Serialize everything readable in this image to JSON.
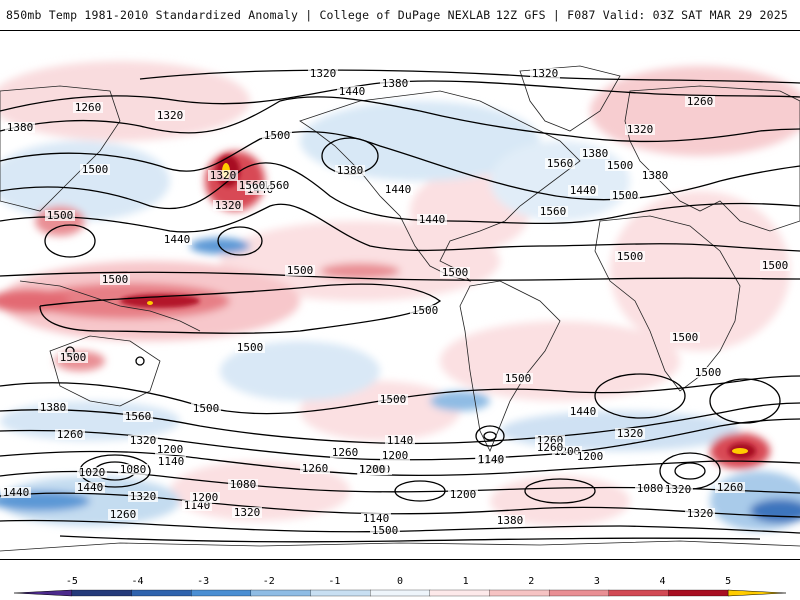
{
  "header": {
    "title": "850mb Temp 1981-2010 Standardized Anomaly | College of DuPage NEXLAB",
    "run_info": "12Z GFS | F087 Valid: 03Z SAT MAR 29 2025"
  },
  "map": {
    "contour_labels": [
      {
        "text": "1320"
      },
      {
        "text": "1320"
      },
      {
        "text": "1380"
      },
      {
        "text": "1440"
      },
      {
        "text": "1260"
      },
      {
        "text": "1380"
      },
      {
        "text": "1320"
      },
      {
        "text": "1500"
      },
      {
        "text": "1500"
      },
      {
        "text": "1320"
      },
      {
        "text": "1380"
      },
      {
        "text": "1560"
      },
      {
        "text": "1440"
      },
      {
        "text": "1500"
      },
      {
        "text": "1440"
      },
      {
        "text": "1380"
      },
      {
        "text": "1440"
      },
      {
        "text": "1560"
      },
      {
        "text": "1320"
      },
      {
        "text": "1320"
      },
      {
        "text": "1380"
      },
      {
        "text": "1500"
      },
      {
        "text": "1440"
      },
      {
        "text": "1260"
      },
      {
        "text": "1440"
      },
      {
        "text": "1560"
      },
      {
        "text": "1500"
      },
      {
        "text": "1560"
      },
      {
        "text": "1500"
      },
      {
        "text": "1500"
      },
      {
        "text": "1500"
      },
      {
        "text": "1500"
      },
      {
        "text": "1500"
      },
      {
        "text": "1500"
      },
      {
        "text": "1500"
      },
      {
        "text": "1500"
      },
      {
        "text": "1500"
      },
      {
        "text": "1500"
      },
      {
        "text": "1500"
      },
      {
        "text": "1500"
      },
      {
        "text": "1380"
      },
      {
        "text": "1560"
      },
      {
        "text": "1500"
      },
      {
        "text": "1440"
      },
      {
        "text": "1260"
      },
      {
        "text": "1320"
      },
      {
        "text": "1200"
      },
      {
        "text": "1140"
      },
      {
        "text": "1080"
      },
      {
        "text": "1020"
      },
      {
        "text": "1080"
      },
      {
        "text": "1140"
      },
      {
        "text": "1320"
      },
      {
        "text": "1200"
      },
      {
        "text": "1260"
      },
      {
        "text": "1260"
      },
      {
        "text": "1140"
      },
      {
        "text": "1200"
      },
      {
        "text": "1140"
      },
      {
        "text": "1140"
      },
      {
        "text": "1200"
      },
      {
        "text": "1260"
      },
      {
        "text": "1380"
      },
      {
        "text": "1200"
      },
      {
        "text": "1260"
      },
      {
        "text": "1320"
      },
      {
        "text": "1440"
      },
      {
        "text": "1440"
      },
      {
        "text": "1320"
      },
      {
        "text": "1140"
      },
      {
        "text": "1200"
      },
      {
        "text": "1260"
      },
      {
        "text": "1200"
      },
      {
        "text": "1380"
      },
      {
        "text": "1320"
      },
      {
        "text": "1140"
      },
      {
        "text": "1080"
      },
      {
        "text": "1320"
      },
      {
        "text": "1260"
      },
      {
        "text": "1500"
      }
    ]
  },
  "colorbar": {
    "ticks": [
      "-5",
      "-4",
      "-3",
      "-2",
      "-1",
      "0",
      "1",
      "2",
      "3",
      "4",
      "5"
    ],
    "colors": [
      "#4c2a8c",
      "#243a7a",
      "#2f63ad",
      "#4b8fd3",
      "#8fbce4",
      "#c8dff2",
      "#eef5fb",
      "#fde9ea",
      "#f6c3c3",
      "#e98f94",
      "#d24a55",
      "#a80f22",
      "#ffcc00"
    ]
  }
}
